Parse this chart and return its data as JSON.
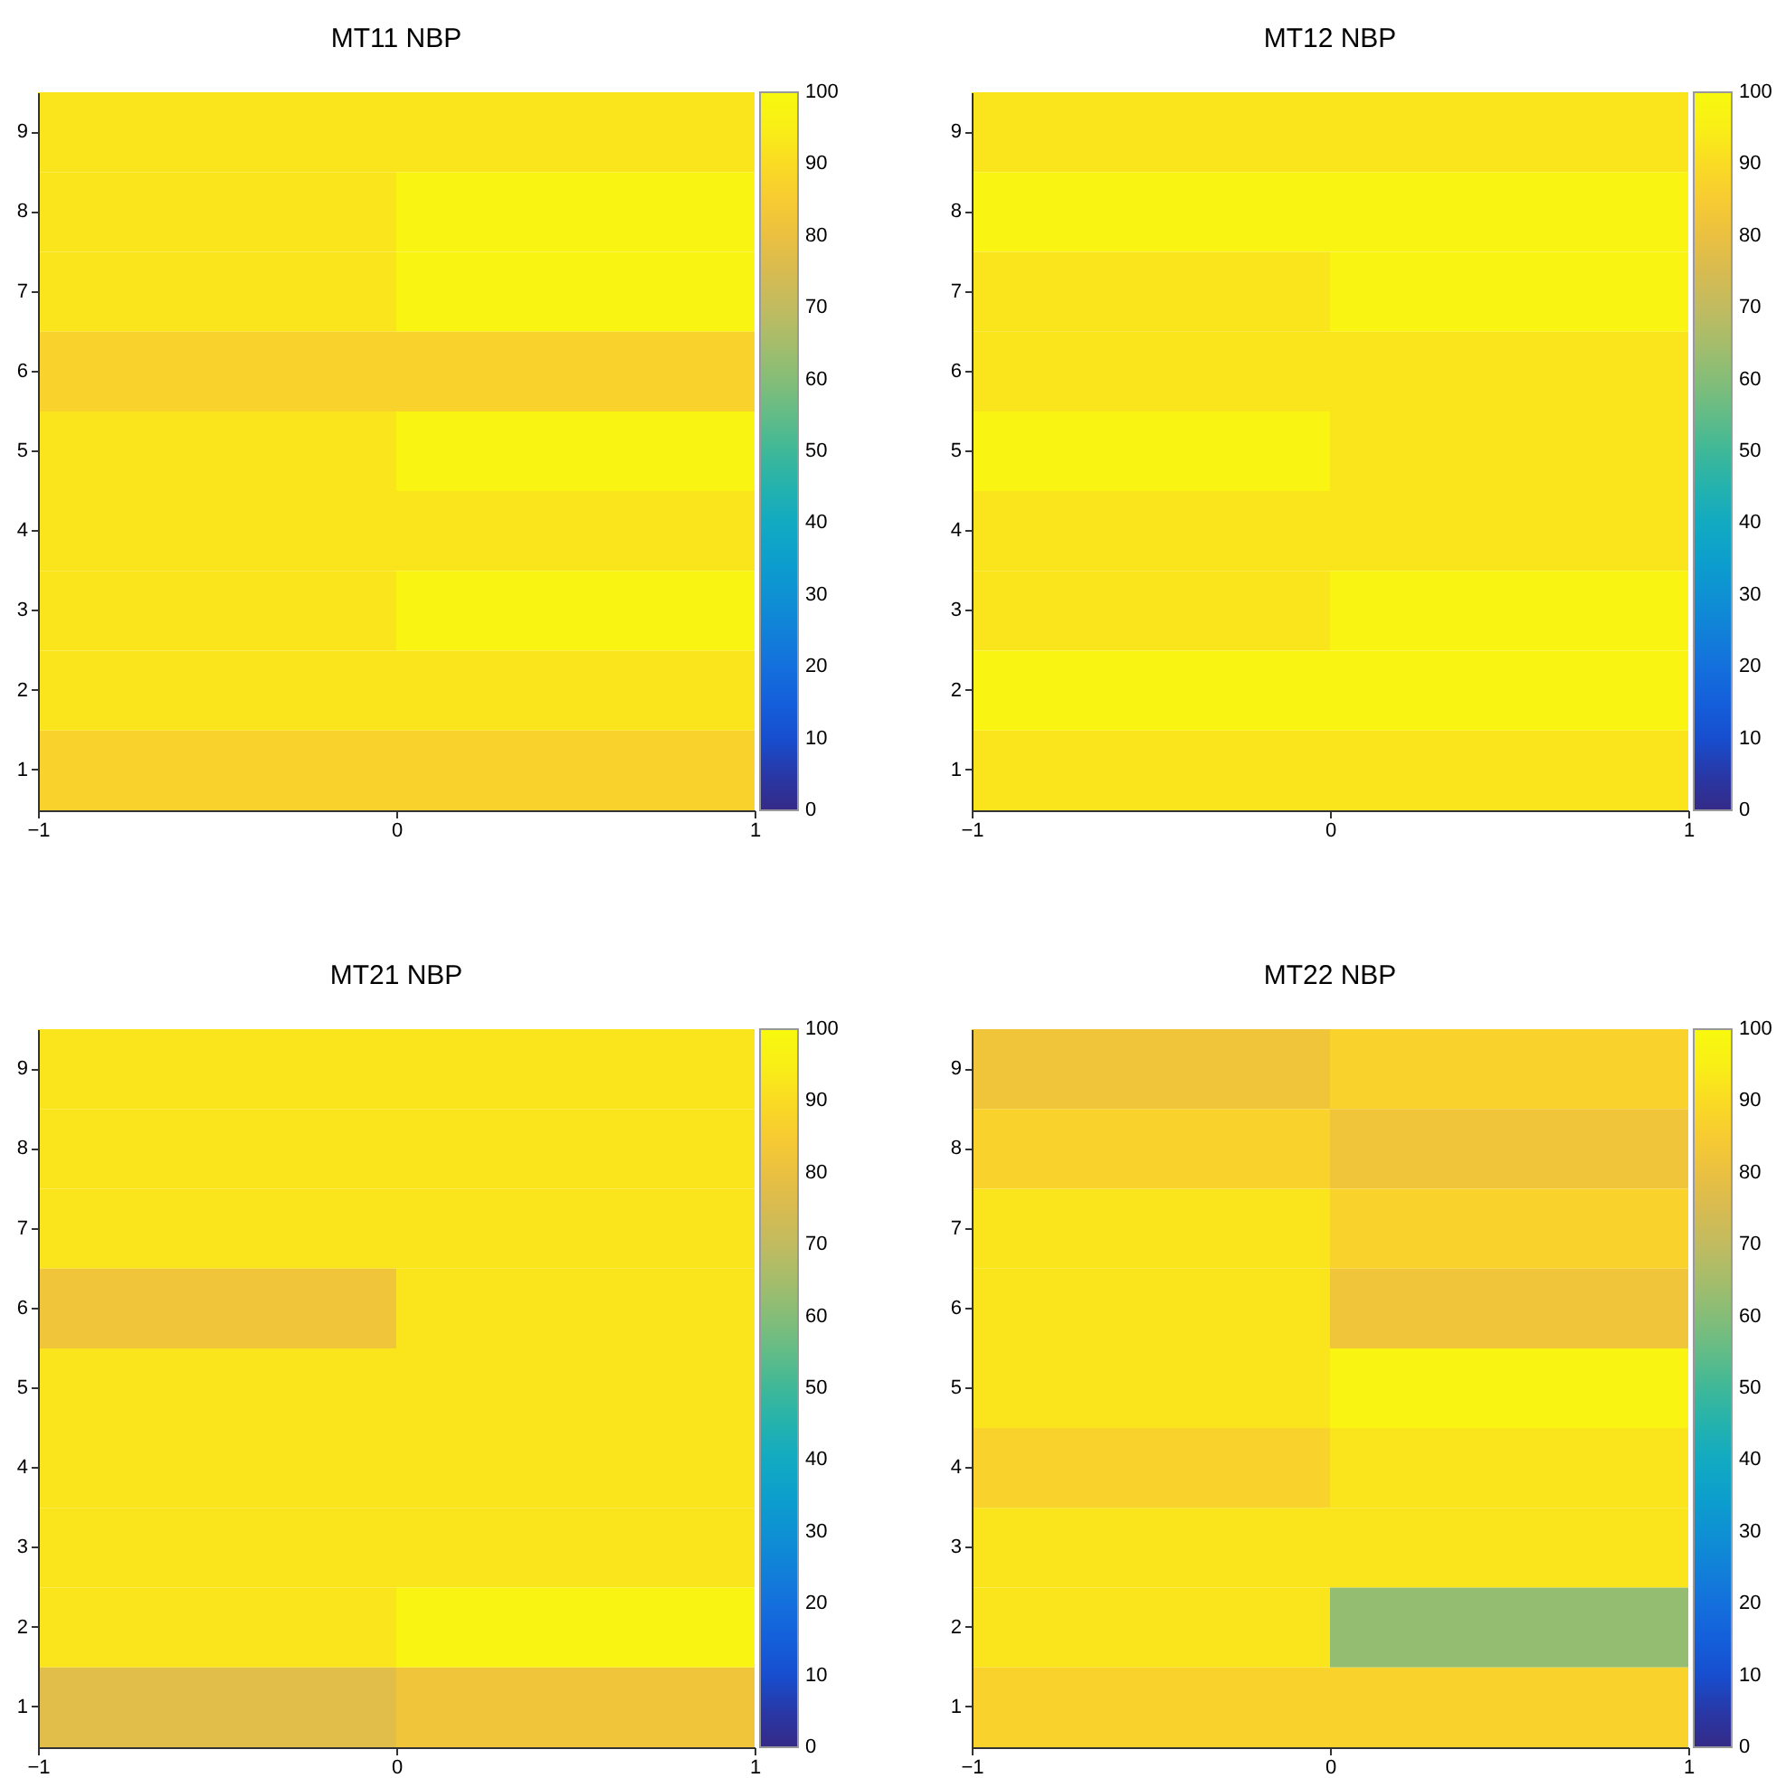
{
  "chart_data": [
    {
      "type": "heatmap",
      "title": "MT11 NBP",
      "xlim": [
        -1,
        1
      ],
      "xticks": [
        -1,
        0,
        1
      ],
      "y_categories": [
        "9",
        "8",
        "7",
        "6",
        "5",
        "4",
        "3",
        "2",
        "1"
      ],
      "cells": [
        [
          92.5,
          92.5
        ],
        [
          92.5,
          97.5
        ],
        [
          92.5,
          97.5
        ],
        [
          87.5,
          87.5
        ],
        [
          92.5,
          97.5
        ],
        [
          92.5,
          92.5
        ],
        [
          92.5,
          97.5
        ],
        [
          92.5,
          92.5
        ],
        [
          87.5,
          87.5
        ]
      ],
      "clim": [
        0,
        100
      ],
      "cticks": [
        0,
        10,
        20,
        30,
        40,
        50,
        60,
        70,
        80,
        90,
        100
      ]
    },
    {
      "type": "heatmap",
      "title": "MT12 NBP",
      "xlim": [
        -1,
        1
      ],
      "xticks": [
        -1,
        0,
        1
      ],
      "y_categories": [
        "9",
        "8",
        "7",
        "6",
        "5",
        "4",
        "3",
        "2",
        "1"
      ],
      "cells": [
        [
          92.5,
          92.5
        ],
        [
          97.5,
          97.5
        ],
        [
          92.5,
          97.5
        ],
        [
          92.5,
          92.5
        ],
        [
          97.5,
          92.5
        ],
        [
          92.5,
          92.5
        ],
        [
          92.5,
          97.5
        ],
        [
          97.5,
          97.5
        ],
        [
          92.5,
          92.5
        ]
      ],
      "clim": [
        0,
        100
      ],
      "cticks": [
        0,
        10,
        20,
        30,
        40,
        50,
        60,
        70,
        80,
        90,
        100
      ]
    },
    {
      "type": "heatmap",
      "title": "MT21 NBP",
      "xlim": [
        -1,
        1
      ],
      "xticks": [
        -1,
        0,
        1
      ],
      "y_categories": [
        "9",
        "8",
        "7",
        "6",
        "5",
        "4",
        "3",
        "2",
        "1"
      ],
      "cells": [
        [
          92.5,
          92.5
        ],
        [
          92.5,
          92.5
        ],
        [
          92.5,
          92.5
        ],
        [
          82.5,
          92.5
        ],
        [
          92.5,
          92.5
        ],
        [
          92.5,
          92.5
        ],
        [
          92.5,
          92.5
        ],
        [
          92.5,
          97.5
        ],
        [
          77.5,
          82.5
        ]
      ],
      "clim": [
        0,
        100
      ],
      "cticks": [
        0,
        10,
        20,
        30,
        40,
        50,
        60,
        70,
        80,
        90,
        100
      ]
    },
    {
      "type": "heatmap",
      "title": "MT22 NBP",
      "xlim": [
        -1,
        1
      ],
      "xticks": [
        -1,
        0,
        1
      ],
      "y_categories": [
        "9",
        "8",
        "7",
        "6",
        "5",
        "4",
        "3",
        "2",
        "1"
      ],
      "cells": [
        [
          82.5,
          87.5
        ],
        [
          87.5,
          82.5
        ],
        [
          92.5,
          87.5
        ],
        [
          92.5,
          82.5
        ],
        [
          92.5,
          97.5
        ],
        [
          87.5,
          92.5
        ],
        [
          92.5,
          92.5
        ],
        [
          92.5,
          62.5
        ],
        [
          87.5,
          87.5
        ]
      ],
      "clim": [
        0,
        100
      ],
      "cticks": [
        0,
        10,
        20,
        30,
        40,
        50,
        60,
        70,
        80,
        90,
        100
      ]
    }
  ]
}
